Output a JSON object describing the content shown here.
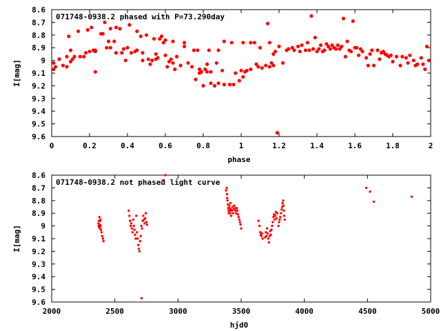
{
  "chart_data": [
    {
      "type": "scatter",
      "title": "071748-0938.2 phased with P=73.290day",
      "xlabel": "phase",
      "ylabel": "I[mag]",
      "xlim": [
        0,
        2
      ],
      "ylim": [
        8.6,
        9.6
      ],
      "y_inverted": true,
      "x_ticks": [
        "0",
        "0.2",
        "0.4",
        "0.6",
        "0.8",
        "1",
        "1.2",
        "1.4",
        "1.6",
        "1.8",
        "2"
      ],
      "y_ticks": [
        "8.6",
        "8.7",
        "8.8",
        "8.9",
        "9",
        "9.1",
        "9.2",
        "9.3",
        "9.4",
        "9.5",
        "9.6"
      ],
      "grid": false,
      "marker_color": "#ff0000",
      "points": [
        [
          0.01,
          9.02
        ],
        [
          0.01,
          9.07
        ],
        [
          0.02,
          9.05
        ],
        [
          0.04,
          8.99
        ],
        [
          0.06,
          9.04
        ],
        [
          0.08,
          9.05
        ],
        [
          0.08,
          8.97
        ],
        [
          0.09,
          8.81
        ],
        [
          0.1,
          9.01
        ],
        [
          0.1,
          8.92
        ],
        [
          0.11,
          8.99
        ],
        [
          0.12,
          8.97
        ],
        [
          0.14,
          8.77
        ],
        [
          0.15,
          8.97
        ],
        [
          0.17,
          8.97
        ],
        [
          0.18,
          8.94
        ],
        [
          0.19,
          8.76
        ],
        [
          0.2,
          8.93
        ],
        [
          0.21,
          8.74
        ],
        [
          0.22,
          8.92
        ],
        [
          0.23,
          8.93
        ],
        [
          0.23,
          8.92
        ],
        [
          0.23,
          9.09
        ],
        [
          0.26,
          8.79
        ],
        [
          0.27,
          8.79
        ],
        [
          0.28,
          8.7
        ],
        [
          0.29,
          8.9
        ],
        [
          0.3,
          8.85
        ],
        [
          0.31,
          8.75
        ],
        [
          0.31,
          8.9
        ],
        [
          0.33,
          8.85
        ],
        [
          0.34,
          8.94
        ],
        [
          0.34,
          8.74
        ],
        [
          0.36,
          8.75
        ],
        [
          0.37,
          8.94
        ],
        [
          0.38,
          8.91
        ],
        [
          0.39,
          9.0
        ],
        [
          0.4,
          8.9
        ],
        [
          0.41,
          8.72
        ],
        [
          0.42,
          8.94
        ],
        [
          0.44,
          8.93
        ],
        [
          0.45,
          8.77
        ],
        [
          0.45,
          8.92
        ],
        [
          0.47,
          8.81
        ],
        [
          0.48,
          9.0
        ],
        [
          0.48,
          8.94
        ],
        [
          0.5,
          8.8
        ],
        [
          0.51,
          8.99
        ],
        [
          0.52,
          9.03
        ],
        [
          0.53,
          9.0
        ],
        [
          0.54,
          8.83
        ],
        [
          0.55,
          8.99
        ],
        [
          0.55,
          8.95
        ],
        [
          0.56,
          8.98
        ],
        [
          0.57,
          8.83
        ],
        [
          0.58,
          8.81
        ],
        [
          0.59,
          8.86
        ],
        [
          0.6,
          8.84
        ],
        [
          0.6,
          8.96
        ],
        [
          0.61,
          9.05
        ],
        [
          0.62,
          9.01
        ],
        [
          0.63,
          8.99
        ],
        [
          0.64,
          8.85
        ],
        [
          0.64,
          9.02
        ],
        [
          0.65,
          9.07
        ],
        [
          0.66,
          8.97
        ],
        [
          0.68,
          9.04
        ],
        [
          0.7,
          8.89
        ],
        [
          0.7,
          8.86
        ],
        [
          0.72,
          9.02
        ],
        [
          0.74,
          9.05
        ],
        [
          0.75,
          8.92
        ],
        [
          0.76,
          9.15
        ],
        [
          0.77,
          8.92
        ],
        [
          0.78,
          9.1
        ],
        [
          0.78,
          9.07
        ],
        [
          0.79,
          9.09
        ],
        [
          0.8,
          9.2
        ],
        [
          0.81,
          9.07
        ],
        [
          0.82,
          9.09
        ],
        [
          0.82,
          9.03
        ],
        [
          0.83,
          8.92
        ],
        [
          0.84,
          9.18
        ],
        [
          0.84,
          9.09
        ],
        [
          0.86,
          9.2
        ],
        [
          0.87,
          9.02
        ],
        [
          0.88,
          8.92
        ],
        [
          0.88,
          9.18
        ],
        [
          0.9,
          9.08
        ],
        [
          0.91,
          9.19
        ],
        [
          0.91,
          8.85
        ],
        [
          0.94,
          9.19
        ],
        [
          0.95,
          8.86
        ],
        [
          0.96,
          9.19
        ],
        [
          0.97,
          9.1
        ],
        [
          0.99,
          9.16
        ],
        [
          1.0,
          9.08
        ],
        [
          1.01,
          9.13
        ],
        [
          1.01,
          8.86
        ],
        [
          1.02,
          9.09
        ],
        [
          1.03,
          9.08
        ],
        [
          1.05,
          9.07
        ],
        [
          1.05,
          8.86
        ],
        [
          1.07,
          8.86
        ],
        [
          1.08,
          9.03
        ],
        [
          1.09,
          9.05
        ],
        [
          1.1,
          8.9
        ],
        [
          1.11,
          9.06
        ],
        [
          1.13,
          9.04
        ],
        [
          1.14,
          8.71
        ],
        [
          1.15,
          9.05
        ],
        [
          1.15,
          8.86
        ],
        [
          1.16,
          9.02
        ],
        [
          1.17,
          9.04
        ],
        [
          1.17,
          8.95
        ],
        [
          1.18,
          8.93
        ],
        [
          1.19,
          9.57
        ],
        [
          1.2,
          8.89
        ],
        [
          1.22,
          9.02
        ],
        [
          1.24,
          8.92
        ],
        [
          1.25,
          8.91
        ],
        [
          1.27,
          8.9
        ],
        [
          1.28,
          8.92
        ],
        [
          1.3,
          8.89
        ],
        [
          1.31,
          8.93
        ],
        [
          1.32,
          8.88
        ],
        [
          1.34,
          8.92
        ],
        [
          1.35,
          8.86
        ],
        [
          1.36,
          8.92
        ],
        [
          1.37,
          8.65
        ],
        [
          1.38,
          8.91
        ],
        [
          1.39,
          8.82
        ],
        [
          1.4,
          8.93
        ],
        [
          1.41,
          8.91
        ],
        [
          1.42,
          8.88
        ],
        [
          1.43,
          8.93
        ],
        [
          1.44,
          8.92
        ],
        [
          1.45,
          8.87
        ],
        [
          1.46,
          8.89
        ],
        [
          1.47,
          8.91
        ],
        [
          1.48,
          8.88
        ],
        [
          1.49,
          8.9
        ],
        [
          1.5,
          8.91
        ],
        [
          1.51,
          8.88
        ],
        [
          1.52,
          8.91
        ],
        [
          1.53,
          8.89
        ],
        [
          1.54,
          8.67
        ],
        [
          1.55,
          8.97
        ],
        [
          1.56,
          8.85
        ],
        [
          1.57,
          8.92
        ],
        [
          1.58,
          8.93
        ],
        [
          1.59,
          8.69
        ],
        [
          1.6,
          8.9
        ],
        [
          1.61,
          8.9
        ],
        [
          1.62,
          8.96
        ],
        [
          1.63,
          8.91
        ],
        [
          1.64,
          8.93
        ],
        [
          1.66,
          8.98
        ],
        [
          1.67,
          9.04
        ],
        [
          1.68,
          8.95
        ],
        [
          1.69,
          8.92
        ],
        [
          1.7,
          9.04
        ],
        [
          1.72,
          8.92
        ],
        [
          1.73,
          8.99
        ],
        [
          1.74,
          8.94
        ],
        [
          1.75,
          8.93
        ],
        [
          1.76,
          8.95
        ],
        [
          1.77,
          8.96
        ],
        [
          1.78,
          8.97
        ],
        [
          1.79,
          8.96
        ],
        [
          1.8,
          9.01
        ],
        [
          1.82,
          8.97
        ],
        [
          1.84,
          9.04
        ],
        [
          1.85,
          8.97
        ],
        [
          1.87,
          8.98
        ],
        [
          1.88,
          9.02
        ],
        [
          1.89,
          8.96
        ],
        [
          1.91,
          9.0
        ],
        [
          1.92,
          9.04
        ],
        [
          1.93,
          9.03
        ],
        [
          1.95,
          8.98
        ],
        [
          1.96,
          9.03
        ],
        [
          1.97,
          9.07
        ],
        [
          1.98,
          8.89
        ],
        [
          1.99,
          9.0
        ]
      ]
    },
    {
      "type": "scatter",
      "title": "071748-0938.2 not phased light curve",
      "xlabel": "hjd0",
      "ylabel": "I[mag]",
      "xlim": [
        2000,
        5000
      ],
      "ylim": [
        8.6,
        9.6
      ],
      "y_inverted": true,
      "x_ticks": [
        "2000",
        "2500",
        "3000",
        "3500",
        "4000",
        "4500",
        "5000"
      ],
      "y_ticks": [
        "8.6",
        "8.7",
        "8.8",
        "8.9",
        "9",
        "9.1",
        "9.2",
        "9.3",
        "9.4",
        "9.5",
        "9.6"
      ],
      "grid": false,
      "marker_color": "#ff0000",
      "points": [
        [
          2370,
          8.98
        ],
        [
          2372,
          9.0
        ],
        [
          2374,
          8.96
        ],
        [
          2376,
          9.01
        ],
        [
          2378,
          8.93
        ],
        [
          2380,
          8.99
        ],
        [
          2382,
          9.02
        ],
        [
          2384,
          8.96
        ],
        [
          2386,
          8.95
        ],
        [
          2388,
          9.0
        ],
        [
          2390,
          9.03
        ],
        [
          2395,
          9.05
        ],
        [
          2400,
          9.08
        ],
        [
          2405,
          9.1
        ],
        [
          2410,
          9.12
        ],
        [
          2610,
          8.88
        ],
        [
          2615,
          8.92
        ],
        [
          2620,
          8.96
        ],
        [
          2625,
          9.0
        ],
        [
          2630,
          8.98
        ],
        [
          2635,
          9.02
        ],
        [
          2640,
          9.05
        ],
        [
          2645,
          8.95
        ],
        [
          2650,
          9.0
        ],
        [
          2655,
          9.03
        ],
        [
          2660,
          9.07
        ],
        [
          2665,
          9.1
        ],
        [
          2670,
          8.92
        ],
        [
          2675,
          9.05
        ],
        [
          2680,
          9.1
        ],
        [
          2685,
          9.15
        ],
        [
          2690,
          9.18
        ],
        [
          2695,
          9.2
        ],
        [
          2700,
          9.12
        ],
        [
          2705,
          9.08
        ],
        [
          2710,
          9.0
        ],
        [
          2712,
          9.57
        ],
        [
          2715,
          9.02
        ],
        [
          2720,
          8.96
        ],
        [
          2725,
          8.92
        ],
        [
          2730,
          8.95
        ],
        [
          2735,
          8.98
        ],
        [
          2740,
          8.94
        ],
        [
          2745,
          8.9
        ],
        [
          2750,
          8.97
        ],
        [
          2755,
          8.99
        ],
        [
          2880,
          8.64
        ],
        [
          2900,
          8.6
        ],
        [
          3380,
          8.72
        ],
        [
          3385,
          8.7
        ],
        [
          3388,
          8.75
        ],
        [
          3390,
          8.78
        ],
        [
          3392,
          8.8
        ],
        [
          3395,
          8.83
        ],
        [
          3398,
          8.86
        ],
        [
          3400,
          8.88
        ],
        [
          3402,
          8.9
        ],
        [
          3405,
          8.84
        ],
        [
          3408,
          8.86
        ],
        [
          3410,
          8.88
        ],
        [
          3412,
          8.9
        ],
        [
          3415,
          8.82
        ],
        [
          3418,
          8.87
        ],
        [
          3420,
          8.92
        ],
        [
          3425,
          8.88
        ],
        [
          3430,
          8.85
        ],
        [
          3435,
          8.9
        ],
        [
          3440,
          8.87
        ],
        [
          3445,
          8.84
        ],
        [
          3450,
          8.86
        ],
        [
          3455,
          8.88
        ],
        [
          3460,
          8.9
        ],
        [
          3465,
          8.86
        ],
        [
          3470,
          8.88
        ],
        [
          3475,
          8.91
        ],
        [
          3480,
          8.93
        ],
        [
          3485,
          8.95
        ],
        [
          3490,
          8.97
        ],
        [
          3495,
          8.99
        ],
        [
          3500,
          9.02
        ],
        [
          3638,
          8.96
        ],
        [
          3645,
          9.0
        ],
        [
          3650,
          9.05
        ],
        [
          3655,
          9.07
        ],
        [
          3660,
          9.08
        ],
        [
          3665,
          9.06
        ],
        [
          3670,
          9.1
        ],
        [
          3690,
          9.09
        ],
        [
          3695,
          9.05
        ],
        [
          3700,
          9.08
        ],
        [
          3705,
          9.02
        ],
        [
          3710,
          9.06
        ],
        [
          3715,
          9.1
        ],
        [
          3720,
          9.13
        ],
        [
          3725,
          9.08
        ],
        [
          3730,
          9.04
        ],
        [
          3735,
          9.07
        ],
        [
          3740,
          9.03
        ],
        [
          3745,
          9.0
        ],
        [
          3750,
          8.97
        ],
        [
          3755,
          8.93
        ],
        [
          3760,
          8.91
        ],
        [
          3765,
          8.95
        ],
        [
          3770,
          8.92
        ],
        [
          3775,
          8.89
        ],
        [
          3780,
          8.94
        ],
        [
          3785,
          8.9
        ],
        [
          3795,
          9.0
        ],
        [
          3800,
          8.97
        ],
        [
          3805,
          8.95
        ],
        [
          3810,
          8.93
        ],
        [
          3815,
          8.9
        ],
        [
          3820,
          8.87
        ],
        [
          3825,
          8.85
        ],
        [
          3828,
          8.82
        ],
        [
          3832,
          8.8
        ],
        [
          3835,
          8.84
        ],
        [
          3838,
          8.88
        ],
        [
          3840,
          8.92
        ],
        [
          3845,
          8.95
        ],
        [
          4490,
          8.7
        ],
        [
          4520,
          8.73
        ],
        [
          4550,
          8.81
        ],
        [
          4850,
          8.77
        ]
      ]
    }
  ]
}
